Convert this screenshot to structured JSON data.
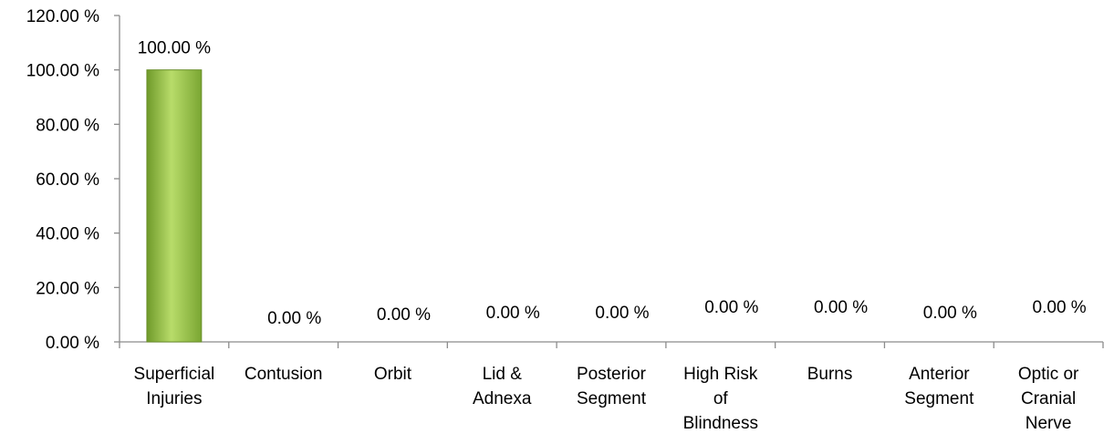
{
  "chart_data": {
    "type": "bar",
    "title": "",
    "xlabel": "",
    "ylabel": "",
    "ylim": [
      0,
      120
    ],
    "grid": false,
    "legend": "none",
    "y_ticks": [
      "0.00 %",
      "20.00 %",
      "40.00 %",
      "60.00 %",
      "80.00 %",
      "100.00 %",
      "120.00 %"
    ],
    "y_tick_values": [
      0,
      20,
      40,
      60,
      80,
      100,
      120
    ],
    "categories": [
      "Superficial Injuries",
      "Contusion",
      "Orbit",
      "Lid & Adnexa",
      "Posterior Segment",
      "High Risk of Blindness",
      "Burns",
      "Anterior Segment",
      "Optic or Cranial Nerve"
    ],
    "values": [
      100,
      0,
      0,
      0,
      0,
      0,
      0,
      0,
      0
    ],
    "data_labels": [
      "100.00 %",
      "0.00 %",
      "0.00 %",
      "0.00 %",
      "0.00 %",
      "0.00 %",
      "0.00 %",
      "0.00 %",
      "0.00 %"
    ],
    "bar_color": "#8cb43c"
  }
}
